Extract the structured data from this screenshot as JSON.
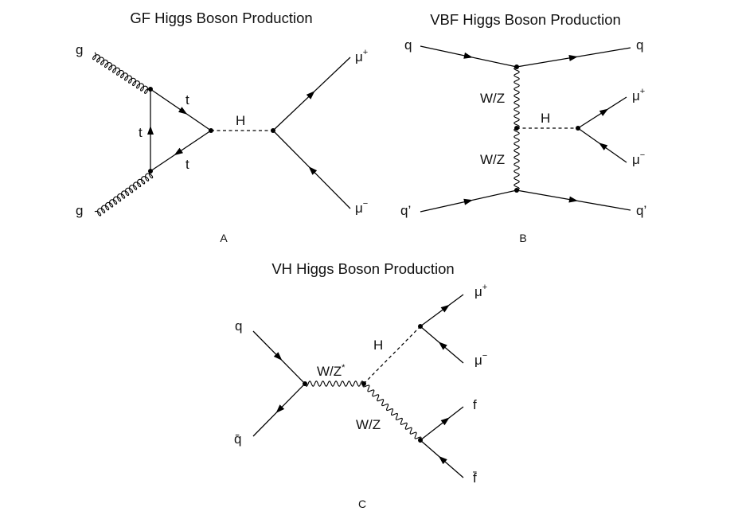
{
  "panels": {
    "gf": {
      "title": "GF Higgs Boson Production",
      "panel_label": "A",
      "labels": {
        "gluon_top": "g",
        "gluon_bottom": "g",
        "top_upper": "t",
        "top_left": "t",
        "top_lower": "t",
        "higgs": "H",
        "muon_plus": "μ",
        "muon_plus_sup": "+",
        "muon_minus": "μ",
        "muon_minus_sup": "−"
      }
    },
    "vbf": {
      "title": "VBF Higgs Boson Production",
      "panel_label": "B",
      "labels": {
        "quark_in": "q",
        "quark_out": "q",
        "boson_upper": "W/Z",
        "boson_lower": "W/Z",
        "higgs": "H",
        "muon_plus": "μ",
        "muon_plus_sup": "+",
        "muon_minus": "μ",
        "muon_minus_sup": "−",
        "quarkp_in": "q’",
        "quarkp_out": "q’"
      }
    },
    "vh": {
      "title": "VH Higgs Boson Production",
      "panel_label": "C",
      "labels": {
        "quark": "q",
        "antiquark": "q̄",
        "boson_star": "W/Z",
        "boson_star_sup": "*",
        "higgs": "H",
        "boson": "W/Z",
        "muon_plus": "μ",
        "muon_plus_sup": "+",
        "muon_minus": "μ",
        "muon_minus_sup": "−",
        "fermion": "f",
        "antifermion": "f̄"
      }
    }
  }
}
